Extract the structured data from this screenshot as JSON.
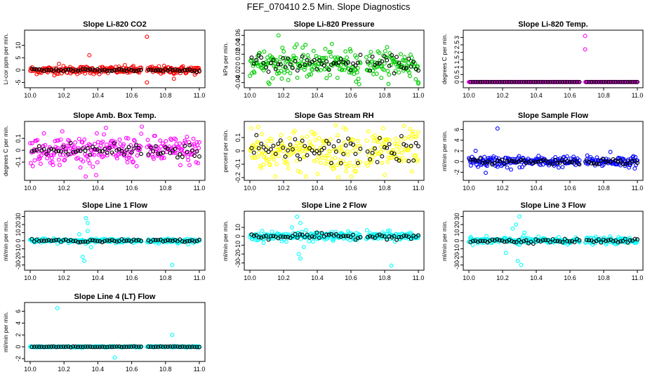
{
  "figure_title": "FEF_070410  2.5 Min. Slope Diagnostics",
  "colors": {
    "black": "#000000",
    "red": "#ff0000",
    "green": "#00cc00",
    "magenta": "#ff00ff",
    "yellow": "#ffff00",
    "blue": "#0000ff",
    "cyan": "#00ffff"
  },
  "chart_data": [
    {
      "type": "scatter",
      "title": "Slope Li-820 CO2",
      "ylabel": "Li-cor ppm per min.",
      "color": "red",
      "xlim": [
        10.0,
        11.0
      ],
      "ylim": [
        -6,
        15
      ],
      "xticks": [
        "10.0",
        "10.2",
        "10.4",
        "10.6",
        "10.8",
        "11.0"
      ],
      "yticks": [
        -5,
        0,
        5,
        10
      ],
      "gap": [
        10.66,
        10.69
      ],
      "noise": 0.8,
      "black_noise": 0.3,
      "center": 0,
      "outliers": [
        [
          10.35,
          6
        ],
        [
          10.69,
          13.5
        ],
        [
          10.69,
          -5
        ],
        [
          10.85,
          -3.5
        ],
        [
          10.17,
          2.5
        ]
      ]
    },
    {
      "type": "scatter",
      "title": "Slope Li-820 Pressure",
      "ylabel": "kPa per min.",
      "color": "green",
      "xlim": [
        10.0,
        11.0
      ],
      "ylim": [
        -0.045,
        0.065
      ],
      "xticks": [
        "10.0",
        "10.2",
        "10.4",
        "10.6",
        "10.8",
        "11.0"
      ],
      "yticks": [
        -0.04,
        -0.02,
        0.0,
        0.02,
        0.04,
        0.06
      ],
      "gap": [
        10.66,
        10.69
      ],
      "noise": 0.015,
      "black_noise": 0.008,
      "center": 0,
      "outliers": [
        [
          10.17,
          0.06
        ],
        [
          10.33,
          0.04
        ],
        [
          10.11,
          -0.04
        ],
        [
          10.63,
          -0.038
        ],
        [
          11.0,
          -0.042
        ],
        [
          10.52,
          -0.03
        ]
      ]
    },
    {
      "type": "scatter",
      "title": "Slope Li-820 Temp.",
      "ylabel": "degrees C per min.",
      "color": "magenta",
      "xlim": [
        10.0,
        11.0
      ],
      "ylim": [
        -0.2,
        3.3
      ],
      "xticks": [
        "10.0",
        "10.2",
        "10.4",
        "10.6",
        "10.8",
        "11.0"
      ],
      "yticks": [
        0.0,
        0.5,
        1.0,
        1.5,
        2.0,
        2.5,
        3.0
      ],
      "gap": [
        10.66,
        10.69
      ],
      "noise": 0.0,
      "black_noise": 0.0,
      "center": 0,
      "outliers": [
        [
          10.69,
          3.1
        ],
        [
          10.69,
          2.2
        ]
      ]
    },
    {
      "type": "scatter",
      "title": "Slope Amb. Box Temp.",
      "ylabel": "degrees C per min.",
      "color": "magenta",
      "xlim": [
        10.0,
        11.0
      ],
      "ylim": [
        -0.23,
        0.22
      ],
      "xticks": [
        "10.0",
        "10.2",
        "10.4",
        "10.6",
        "10.8",
        "11.0"
      ],
      "yticks": [
        -0.1,
        0.0,
        0.1
      ],
      "gap": [
        10.66,
        10.69
      ],
      "noise": 0.06,
      "black_noise": 0.035,
      "center": 0,
      "outliers": [
        [
          10.19,
          0.16
        ],
        [
          10.66,
          0.2
        ],
        [
          10.39,
          -0.21
        ]
      ]
    },
    {
      "type": "scatter",
      "title": "Slope Gas Stream RH",
      "ylabel": "percent per min.",
      "color": "yellow",
      "xlim": [
        10.0,
        11.0
      ],
      "ylim": [
        -0.2,
        0.2
      ],
      "xticks": [
        "10.0",
        "10.2",
        "10.4",
        "10.6",
        "10.8",
        "11.0"
      ],
      "yticks": [
        -0.2,
        -0.1,
        0.0,
        0.1
      ],
      "gap": [
        10.66,
        10.69
      ],
      "noise": 0.08,
      "black_noise": 0.05,
      "center": 0,
      "outliers": [
        [
          10.05,
          0.18
        ],
        [
          10.3,
          -0.16
        ],
        [
          10.8,
          -0.18
        ],
        [
          10.79,
          0.17
        ],
        [
          10.57,
          0.16
        ]
      ]
    },
    {
      "type": "scatter",
      "title": "Slope Sample Flow",
      "ylabel": "ml/min per min.",
      "color": "blue",
      "xlim": [
        10.0,
        11.0
      ],
      "ylim": [
        -3,
        7
      ],
      "xticks": [
        "10.0",
        "10.2",
        "10.4",
        "10.6",
        "10.8",
        "11.0"
      ],
      "yticks": [
        -2,
        0,
        2,
        4,
        6
      ],
      "gap": [
        10.66,
        10.69
      ],
      "noise": 0.5,
      "black_noise": 0.25,
      "center": 0,
      "outliers": [
        [
          10.17,
          6.2
        ],
        [
          10.84,
          1.8
        ],
        [
          10.1,
          -2.1
        ],
        [
          10.25,
          -1.5
        ],
        [
          10.04,
          2
        ]
      ]
    },
    {
      "type": "scatter",
      "title": "Slope Line 1 Flow",
      "ylabel": "ml/min per min.",
      "color": "cyan",
      "xlim": [
        10.0,
        11.0
      ],
      "ylim": [
        -33,
        33
      ],
      "xticks": [
        "10.0",
        "10.2",
        "10.4",
        "10.6",
        "10.8",
        "11.0"
      ],
      "yticks": [
        -30,
        -20,
        -10,
        0,
        10,
        20,
        30
      ],
      "gap": [
        10.66,
        10.69
      ],
      "noise": 1.2,
      "black_noise": 0.8,
      "center": 0,
      "outliers": [
        [
          10.33,
          28
        ],
        [
          10.34,
          22
        ],
        [
          10.32,
          -25
        ],
        [
          10.31,
          -20
        ],
        [
          10.34,
          12
        ],
        [
          10.84,
          -30
        ],
        [
          10.29,
          8
        ],
        [
          10.36,
          -8
        ]
      ]
    },
    {
      "type": "scatter",
      "title": "Slope Line 2 Flow",
      "ylabel": "ml/min per min.",
      "color": "cyan",
      "xlim": [
        10.0,
        11.0
      ],
      "ylim": [
        -35,
        25
      ],
      "xticks": [
        "10.0",
        "10.2",
        "10.4",
        "10.6",
        "10.8",
        "11.0"
      ],
      "yticks": [
        -30,
        -20,
        -10,
        0,
        10
      ],
      "gap": [
        10.66,
        10.69
      ],
      "noise": 2.5,
      "black_noise": 1.5,
      "center": 0,
      "outliers": [
        [
          10.28,
          22
        ],
        [
          10.3,
          15
        ],
        [
          10.3,
          -25
        ],
        [
          10.29,
          -20
        ],
        [
          10.84,
          -33
        ],
        [
          10.25,
          10
        ],
        [
          10.32,
          -12
        ]
      ]
    },
    {
      "type": "scatter",
      "title": "Slope Line 3 Flow",
      "ylabel": "ml/min per min.",
      "color": "cyan",
      "xlim": [
        10.0,
        11.0
      ],
      "ylim": [
        -33,
        33
      ],
      "xticks": [
        "10.0",
        "10.2",
        "10.4",
        "10.6",
        "10.8",
        "11.0"
      ],
      "yticks": [
        -30,
        -20,
        -10,
        0,
        10,
        20,
        30
      ],
      "gap": [
        10.66,
        10.69
      ],
      "noise": 2.0,
      "black_noise": 1.2,
      "center": 0,
      "outliers": [
        [
          10.3,
          30
        ],
        [
          10.28,
          20
        ],
        [
          10.31,
          -30
        ],
        [
          10.29,
          -25
        ],
        [
          10.26,
          15
        ],
        [
          10.22,
          -15
        ],
        [
          10.33,
          10
        ],
        [
          10.3,
          -5
        ]
      ]
    },
    {
      "type": "scatter",
      "title": "Slope Line 4 (LT) Flow",
      "ylabel": "ml/min per min.",
      "color": "cyan",
      "xlim": [
        10.0,
        11.0
      ],
      "ylim": [
        -2,
        7
      ],
      "xticks": [
        "10.0",
        "10.2",
        "10.4",
        "10.6",
        "10.8",
        "11.0"
      ],
      "yticks": [
        -2,
        0,
        2,
        4,
        6
      ],
      "gap": [
        10.66,
        10.69
      ],
      "noise": 0.05,
      "black_noise": 0.03,
      "center": 0,
      "outliers": [
        [
          10.16,
          6.5
        ],
        [
          10.84,
          2.0
        ],
        [
          10.5,
          -1.8
        ]
      ]
    }
  ]
}
